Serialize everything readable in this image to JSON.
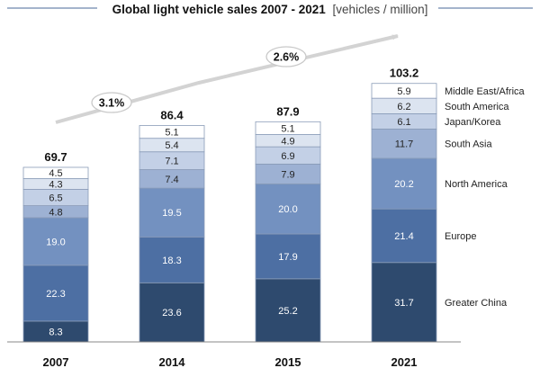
{
  "chart_data": {
    "type": "bar",
    "stacked": true,
    "title": "Global light vehicle sales 2007 - 2021",
    "title_unit": "[vehicles / million]",
    "categories": [
      "2007",
      "2014",
      "2015",
      "2021"
    ],
    "totals": [
      "69.7",
      "86.4",
      "87.9",
      "103.2"
    ],
    "series": [
      {
        "name": "Greater China",
        "values": [
          8.3,
          23.6,
          25.2,
          31.7
        ],
        "color": "#2e4a6e"
      },
      {
        "name": "Europe",
        "values": [
          22.3,
          18.3,
          17.9,
          21.4
        ],
        "color": "#4d6fa3"
      },
      {
        "name": "North America",
        "values": [
          19.0,
          19.5,
          20.0,
          20.2
        ],
        "color": "#7391c0"
      },
      {
        "name": "South Asia",
        "values": [
          4.8,
          7.4,
          7.9,
          11.7
        ],
        "color": "#9db1d3"
      },
      {
        "name": "Japan/Korea",
        "values": [
          6.5,
          7.1,
          6.9,
          6.1
        ],
        "color": "#c3d0e6"
      },
      {
        "name": "South America",
        "values": [
          4.3,
          5.4,
          4.9,
          6.2
        ],
        "color": "#dce4f0"
      },
      {
        "name": "Middle East/Africa",
        "values": [
          4.5,
          5.1,
          5.1,
          5.9
        ],
        "color": "#ffffff"
      }
    ],
    "cagr_labels": [
      "3.1%",
      "2.6%"
    ],
    "ylim": [
      0,
      104
    ]
  }
}
